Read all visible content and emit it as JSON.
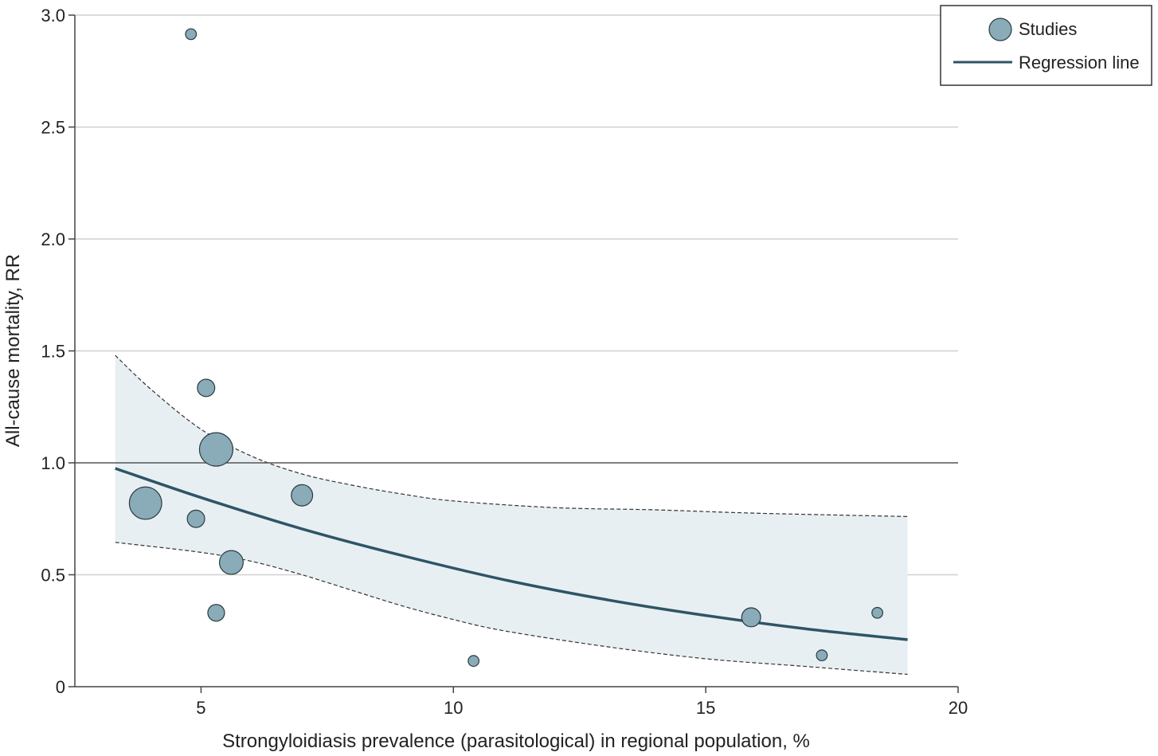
{
  "colors": {
    "band_fill": "#e8eff3",
    "regression_line": "#2e5566",
    "study_fill": "#8aabb8",
    "study_stroke": "#2a3a40",
    "grid": "#d0d0d0",
    "axis": "#444444"
  },
  "chart_data": {
    "type": "scatter",
    "xlabel": "Strongyloidiasis prevalence (parasitological) in regional population, %",
    "ylabel": "All-cause mortality, RR",
    "xlim": [
      2.5,
      20
    ],
    "ylim": [
      0,
      3.0
    ],
    "xticks": [
      5,
      10,
      15,
      20
    ],
    "yticks": [
      0,
      0.5,
      1.0,
      1.5,
      2.0,
      2.5,
      3.0
    ],
    "ytick_labels": [
      "0",
      "0.5",
      "1.0",
      "1.5",
      "2.0",
      "2.5",
      "3.0"
    ],
    "grid": "horizontal",
    "reference_line_y": 1.0,
    "legend": {
      "placement": "top-right",
      "entries": [
        "Studies",
        "Regression line"
      ]
    },
    "studies": [
      {
        "x": 4.8,
        "y": 2.915,
        "weight": 1
      },
      {
        "x": 5.1,
        "y": 1.335,
        "weight": 5
      },
      {
        "x": 5.3,
        "y": 1.06,
        "weight": 28
      },
      {
        "x": 3.9,
        "y": 0.82,
        "weight": 26
      },
      {
        "x": 4.9,
        "y": 0.75,
        "weight": 5
      },
      {
        "x": 7.0,
        "y": 0.855,
        "weight": 9
      },
      {
        "x": 5.6,
        "y": 0.555,
        "weight": 12
      },
      {
        "x": 5.3,
        "y": 0.33,
        "weight": 4.5
      },
      {
        "x": 10.4,
        "y": 0.115,
        "weight": 1
      },
      {
        "x": 15.9,
        "y": 0.31,
        "weight": 6.5
      },
      {
        "x": 17.3,
        "y": 0.14,
        "weight": 1
      },
      {
        "x": 18.4,
        "y": 0.33,
        "weight": 1
      }
    ],
    "regression": {
      "x": [
        3.3,
        5,
        7,
        9,
        11,
        13,
        15,
        17,
        19
      ],
      "y": [
        0.975,
        0.845,
        0.705,
        0.585,
        0.478,
        0.39,
        0.318,
        0.258,
        0.21
      ]
    },
    "ci_upper": {
      "x": [
        3.3,
        4,
        5,
        6,
        7,
        8,
        9,
        10,
        12,
        14,
        16,
        19
      ],
      "y": [
        1.48,
        1.33,
        1.15,
        1.03,
        0.95,
        0.9,
        0.86,
        0.83,
        0.8,
        0.79,
        0.775,
        0.76
      ]
    },
    "ci_lower": {
      "x": [
        3.3,
        5,
        6,
        7,
        8,
        9,
        10,
        11,
        13,
        15,
        17,
        19
      ],
      "y": [
        0.645,
        0.6,
        0.56,
        0.5,
        0.43,
        0.36,
        0.3,
        0.25,
        0.18,
        0.125,
        0.09,
        0.055
      ]
    }
  }
}
